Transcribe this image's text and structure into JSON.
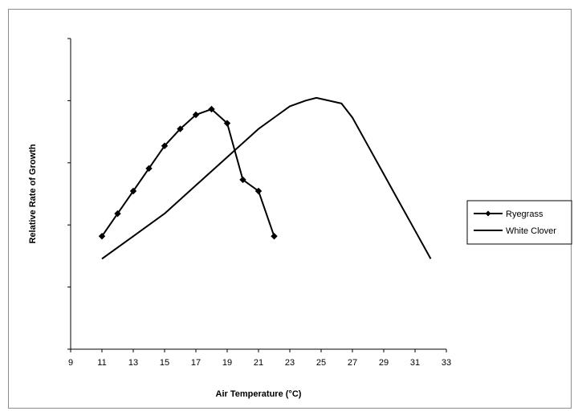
{
  "chart_data": {
    "type": "line",
    "xlabel": "Air Temperature (°C)",
    "ylabel": "Relative Rate of Growth",
    "xlim": [
      9,
      33
    ],
    "x_ticks": [
      9,
      11,
      13,
      15,
      17,
      19,
      21,
      23,
      25,
      27,
      29,
      31,
      33
    ],
    "ylim": [
      0,
      5.5
    ],
    "y_tick_count": 6,
    "y_tick_labels_shown": false,
    "grid": false,
    "legend_position": "right",
    "series": [
      {
        "name": "Ryegrass",
        "marker": "diamond",
        "color": "#000000",
        "points": [
          [
            11,
            2.0
          ],
          [
            12,
            2.4
          ],
          [
            13,
            2.8
          ],
          [
            14,
            3.2
          ],
          [
            15,
            3.6
          ],
          [
            16,
            3.9
          ],
          [
            17,
            4.15
          ],
          [
            18,
            4.25
          ],
          [
            19,
            4.0
          ],
          [
            20,
            3.0
          ],
          [
            21,
            2.8
          ],
          [
            22,
            2.0
          ]
        ]
      },
      {
        "name": "White Clover",
        "marker": "none",
        "color": "#000000",
        "points": [
          [
            11,
            1.6
          ],
          [
            13,
            2.0
          ],
          [
            15,
            2.4
          ],
          [
            17,
            2.9
          ],
          [
            19,
            3.4
          ],
          [
            21,
            3.9
          ],
          [
            22,
            4.1
          ],
          [
            23,
            4.3
          ],
          [
            24,
            4.4
          ],
          [
            24.7,
            4.45
          ],
          [
            25.5,
            4.4
          ],
          [
            26.3,
            4.35
          ],
          [
            27,
            4.1
          ],
          [
            28,
            3.6
          ],
          [
            29,
            3.1
          ],
          [
            30,
            2.6
          ],
          [
            31,
            2.1
          ],
          [
            32,
            1.6
          ]
        ]
      }
    ]
  }
}
